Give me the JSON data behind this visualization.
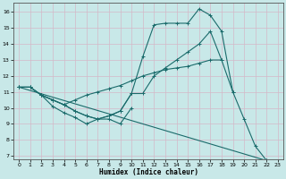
{
  "xlabel": "Humidex (Indice chaleur)",
  "bg_color": "#c8e8e8",
  "grid_color": "#b0d8d8",
  "line_color": "#1a6b6b",
  "xlim": [
    -0.5,
    23.5
  ],
  "ylim": [
    6.8,
    16.6
  ],
  "yticks": [
    7,
    8,
    9,
    10,
    11,
    12,
    13,
    14,
    15,
    16
  ],
  "xticks": [
    0,
    1,
    2,
    3,
    4,
    5,
    6,
    7,
    8,
    9,
    10,
    11,
    12,
    13,
    14,
    15,
    16,
    17,
    18,
    19,
    20,
    21,
    22,
    23
  ],
  "lines": [
    {
      "x": [
        0,
        1,
        2,
        3,
        4,
        5,
        6,
        7,
        8,
        9,
        10,
        11,
        12,
        13,
        14,
        15,
        16,
        17,
        18
      ],
      "y": [
        11.3,
        11.3,
        10.8,
        10.5,
        10.2,
        10.5,
        10.8,
        11.0,
        11.2,
        11.4,
        11.7,
        12.0,
        12.2,
        12.4,
        12.5,
        12.6,
        12.8,
        13.0,
        13.0
      ]
    },
    {
      "x": [
        0,
        1,
        2,
        3,
        4,
        5,
        6,
        7,
        8,
        9,
        10,
        11,
        12,
        13,
        14,
        15,
        16,
        17,
        18,
        19,
        20,
        21,
        22
      ],
      "y": [
        11.3,
        11.3,
        10.8,
        10.5,
        10.2,
        9.8,
        9.5,
        9.3,
        9.5,
        9.8,
        10.9,
        13.2,
        15.2,
        15.3,
        15.3,
        15.3,
        16.2,
        15.8,
        14.8,
        11.0,
        9.3,
        7.6,
        6.7
      ]
    },
    {
      "x": [
        0,
        1,
        2,
        3,
        4,
        5,
        6,
        7,
        8,
        9,
        10,
        11,
        12,
        13,
        14,
        15,
        16,
        17,
        18,
        19
      ],
      "y": [
        11.3,
        11.3,
        10.8,
        10.5,
        10.2,
        9.8,
        9.5,
        9.3,
        9.5,
        9.8,
        10.9,
        10.9,
        12.0,
        12.5,
        13.0,
        13.5,
        14.0,
        14.8,
        13.0,
        11.0
      ]
    },
    {
      "x": [
        0,
        22
      ],
      "y": [
        11.3,
        6.7
      ]
    },
    {
      "x": [
        2,
        3,
        4,
        5,
        6,
        7,
        8,
        9,
        10
      ],
      "y": [
        10.8,
        10.1,
        9.7,
        9.4,
        9.0,
        9.3,
        9.3,
        9.0,
        10.0
      ]
    }
  ]
}
